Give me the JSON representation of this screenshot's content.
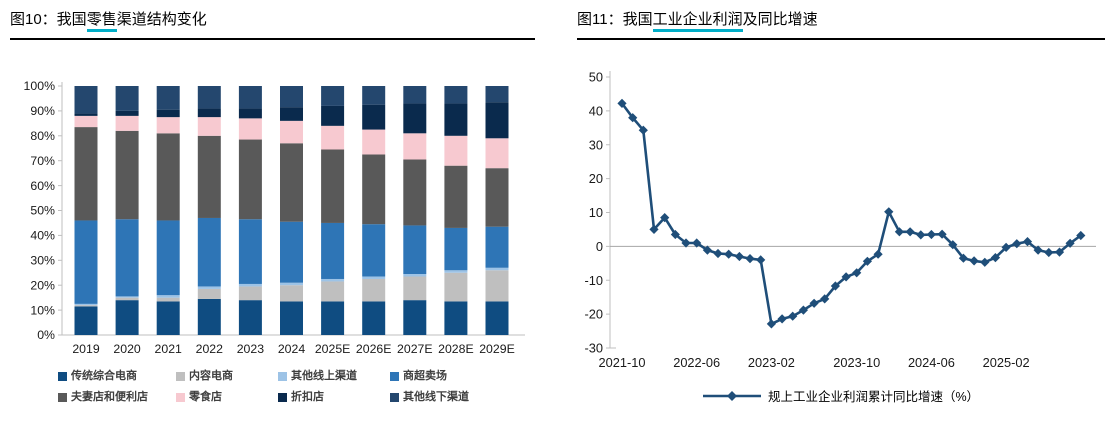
{
  "figure10": {
    "title": {
      "prefix": "图10：我国",
      "highlight": "零售",
      "suffix": "渠道结构变化"
    }
  },
  "figure11": {
    "title": {
      "prefix": "图11：我国",
      "highlight": "工业企业利润",
      "suffix": "及同比增速"
    }
  },
  "colors": {
    "title_underline": "#00AEC8",
    "title_rule": "#000000",
    "axis_line": "#BFBFBF",
    "zero_line": "#A6A6A6",
    "tick_label": "#1a1a1a"
  },
  "chart_data": [
    {
      "type": "bar",
      "stacked": true,
      "title": "图10：我国零售渠道结构变化",
      "unit": "%",
      "ylim": [
        0,
        100
      ],
      "yticks": [
        "0%",
        "10%",
        "20%",
        "30%",
        "40%",
        "50%",
        "60%",
        "70%",
        "80%",
        "90%",
        "100%"
      ],
      "categories": [
        "2019",
        "2020",
        "2021",
        "2022",
        "2023",
        "2024",
        "2025E",
        "2026E",
        "2027E",
        "2028E",
        "2029E"
      ],
      "legend_position": "bottom",
      "series": [
        {
          "name": "传统综合电商",
          "color": "#0F4C81",
          "values": [
            11.5,
            14,
            13.5,
            14.5,
            14,
            13.5,
            13.5,
            13.5,
            14,
            13.5,
            13.5
          ]
        },
        {
          "name": "内容电商",
          "color": "#BFBFBF",
          "values": [
            0.5,
            1,
            1.5,
            4,
            5.5,
            6.5,
            8,
            9,
            9.5,
            11.5,
            12.5
          ]
        },
        {
          "name": "其他线上渠道",
          "color": "#9DC3E6",
          "values": [
            0.5,
            0.5,
            1,
            1,
            1,
            1,
            1,
            1,
            1,
            1,
            1
          ]
        },
        {
          "name": "商超卖场",
          "color": "#2E75B6",
          "values": [
            33.5,
            31,
            30,
            27.5,
            26,
            24.5,
            22.5,
            21,
            19.5,
            17,
            16.5
          ]
        },
        {
          "name": "夫妻店和便利店",
          "color": "#595959",
          "values": [
            37.5,
            35.5,
            35,
            33,
            32,
            31.5,
            29.5,
            28,
            26.5,
            25,
            23.5
          ]
        },
        {
          "name": "零食店",
          "color": "#F7C9D0",
          "values": [
            4.5,
            6,
            6.5,
            7.5,
            8.5,
            9,
            9.5,
            10,
            10.5,
            12,
            12
          ]
        },
        {
          "name": "折扣店",
          "color": "#0A2A4D",
          "values": [
            1,
            2,
            3,
            3.5,
            4,
            5.5,
            8,
            10,
            12,
            13,
            14.5
          ]
        },
        {
          "name": "其他线下渠道",
          "color": "#24476E",
          "values": [
            11,
            10,
            9.5,
            9,
            9,
            8.5,
            8,
            7.5,
            7,
            7,
            6.5
          ]
        }
      ]
    },
    {
      "type": "line",
      "title": "图11：我国工业企业利润及同比增速",
      "legend": "规上工业企业利润累计同比增速（%）",
      "line_color": "#1F4E79",
      "marker": "diamond",
      "ylim": [
        -30,
        50
      ],
      "yticks": [
        "50",
        "40",
        "30",
        "20",
        "10",
        "0",
        "-10",
        "-20",
        "-30"
      ],
      "xtick_labels": [
        "2021-10",
        "2022-06",
        "2023-02",
        "2023-10",
        "2024-06",
        "2025-02"
      ],
      "xtick_indices": [
        0,
        7,
        14,
        22,
        29,
        36
      ],
      "x": [
        "2021-10",
        "2021-11",
        "2021-12",
        "2022-02",
        "2022-03",
        "2022-04",
        "2022-05",
        "2022-06",
        "2022-07",
        "2022-08",
        "2022-09",
        "2022-10",
        "2022-11",
        "2022-12",
        "2023-02",
        "2023-03",
        "2023-04",
        "2023-05",
        "2023-06",
        "2023-07",
        "2023-08",
        "2023-09",
        "2023-10",
        "2023-11",
        "2023-12",
        "2024-02",
        "2024-03",
        "2024-04",
        "2024-05",
        "2024-06",
        "2024-07",
        "2024-08",
        "2024-09",
        "2024-10",
        "2024-11",
        "2024-12",
        "2025-02",
        "2025-03",
        "2025-04",
        "2025-05",
        "2025-06",
        "2025-07",
        "2025-08",
        "2025-09"
      ],
      "y": [
        42.2,
        38.0,
        34.3,
        5.0,
        8.5,
        3.5,
        1.0,
        1.0,
        -1.1,
        -2.1,
        -2.3,
        -3.0,
        -3.6,
        -4.0,
        -22.9,
        -21.4,
        -20.6,
        -18.8,
        -16.8,
        -15.5,
        -11.7,
        -9.0,
        -7.8,
        -4.4,
        -2.3,
        10.2,
        4.3,
        4.3,
        3.4,
        3.5,
        3.6,
        0.5,
        -3.5,
        -4.3,
        -4.7,
        -3.3,
        -0.3,
        0.8,
        1.4,
        -1.1,
        -1.8,
        -1.7,
        0.9,
        3.2
      ]
    }
  ]
}
